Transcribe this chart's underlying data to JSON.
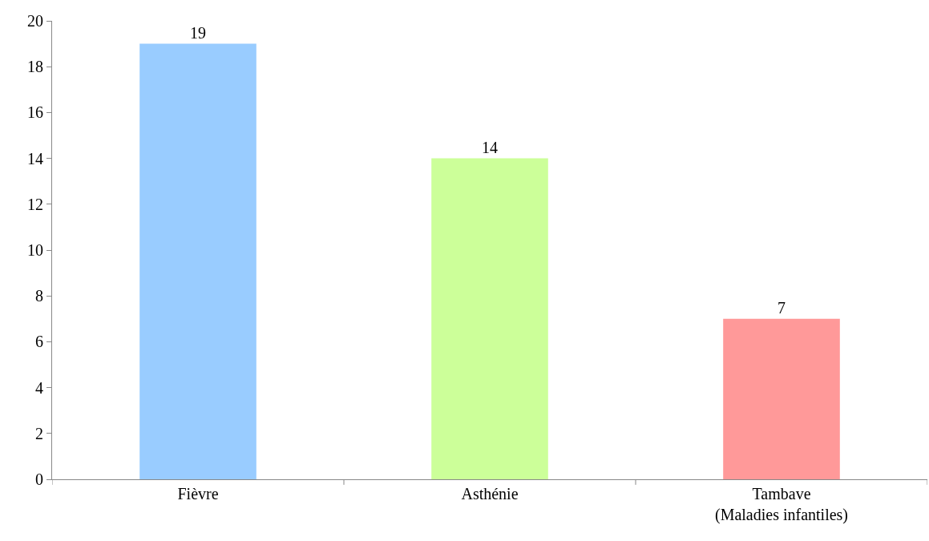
{
  "chart_data": {
    "type": "bar",
    "categories": [
      "Fièvre",
      "Asthénie",
      "Tambave\n(Maladies infantiles)"
    ],
    "values": [
      19,
      14,
      7
    ],
    "colors": [
      "#99ccff",
      "#ccff99",
      "#ff9999"
    ],
    "ylim": [
      0,
      20
    ],
    "yticks": [
      0,
      2,
      4,
      6,
      8,
      10,
      12,
      14,
      16,
      18,
      20
    ],
    "data_labels": true
  }
}
